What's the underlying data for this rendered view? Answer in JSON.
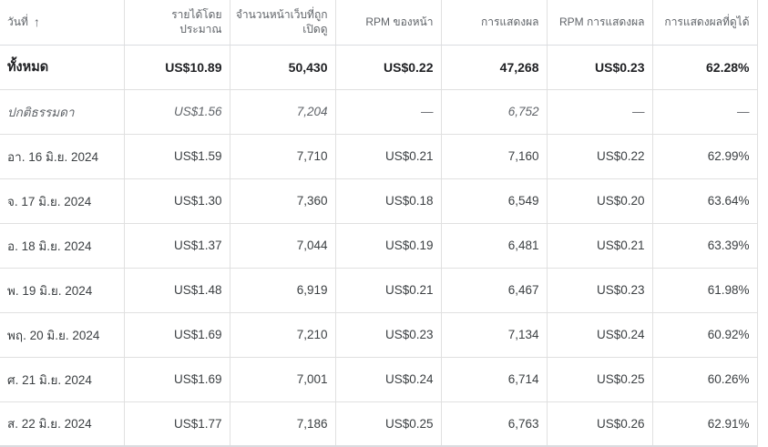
{
  "table": {
    "columns": [
      {
        "key": "date",
        "label": "วันที่",
        "sort": "ascending"
      },
      {
        "key": "est_revenue",
        "label": "รายได้โดยประมาณ"
      },
      {
        "key": "pageviews",
        "label": "จำนวนหน้าเว็บที่ถูกเปิดดู"
      },
      {
        "key": "page_rpm",
        "label": "RPM ของหน้า"
      },
      {
        "key": "impressions",
        "label": "การแสดงผล"
      },
      {
        "key": "impression_rpm",
        "label": "RPM การแสดงผล"
      },
      {
        "key": "active_view_viewable",
        "label": "การแสดงผลที่ดูได้"
      }
    ],
    "total_row": {
      "date": "ทั้งหมด",
      "est_revenue": "US$10.89",
      "pageviews": "50,430",
      "page_rpm": "US$0.22",
      "impressions": "47,268",
      "impression_rpm": "US$0.23",
      "active_view_viewable": "62.28%"
    },
    "normal_row": {
      "date": "ปกติธรรมดา",
      "est_revenue": "US$1.56",
      "pageviews": "7,204",
      "page_rpm": "—",
      "impressions": "6,752",
      "impression_rpm": "—",
      "active_view_viewable": "—"
    },
    "rows": [
      {
        "date": "อา. 16 มิ.ย. 2024",
        "est_revenue": "US$1.59",
        "pageviews": "7,710",
        "page_rpm": "US$0.21",
        "impressions": "7,160",
        "impression_rpm": "US$0.22",
        "active_view_viewable": "62.99%"
      },
      {
        "date": "จ. 17 มิ.ย. 2024",
        "est_revenue": "US$1.30",
        "pageviews": "7,360",
        "page_rpm": "US$0.18",
        "impressions": "6,549",
        "impression_rpm": "US$0.20",
        "active_view_viewable": "63.64%"
      },
      {
        "date": "อ. 18 มิ.ย. 2024",
        "est_revenue": "US$1.37",
        "pageviews": "7,044",
        "page_rpm": "US$0.19",
        "impressions": "6,481",
        "impression_rpm": "US$0.21",
        "active_view_viewable": "63.39%"
      },
      {
        "date": "พ. 19 มิ.ย. 2024",
        "est_revenue": "US$1.48",
        "pageviews": "6,919",
        "page_rpm": "US$0.21",
        "impressions": "6,467",
        "impression_rpm": "US$0.23",
        "active_view_viewable": "61.98%"
      },
      {
        "date": "พฤ. 20 มิ.ย. 2024",
        "est_revenue": "US$1.69",
        "pageviews": "7,210",
        "page_rpm": "US$0.23",
        "impressions": "7,134",
        "impression_rpm": "US$0.24",
        "active_view_viewable": "60.92%"
      },
      {
        "date": "ศ. 21 มิ.ย. 2024",
        "est_revenue": "US$1.69",
        "pageviews": "7,001",
        "page_rpm": "US$0.24",
        "impressions": "6,714",
        "impression_rpm": "US$0.25",
        "active_view_viewable": "60.26%"
      },
      {
        "date": "ส. 22 มิ.ย. 2024",
        "est_revenue": "US$1.77",
        "pageviews": "7,186",
        "page_rpm": "US$0.25",
        "impressions": "6,763",
        "impression_rpm": "US$0.26",
        "active_view_viewable": "62.91%"
      }
    ]
  },
  "icons": {
    "sort": "arrow-up-icon"
  }
}
